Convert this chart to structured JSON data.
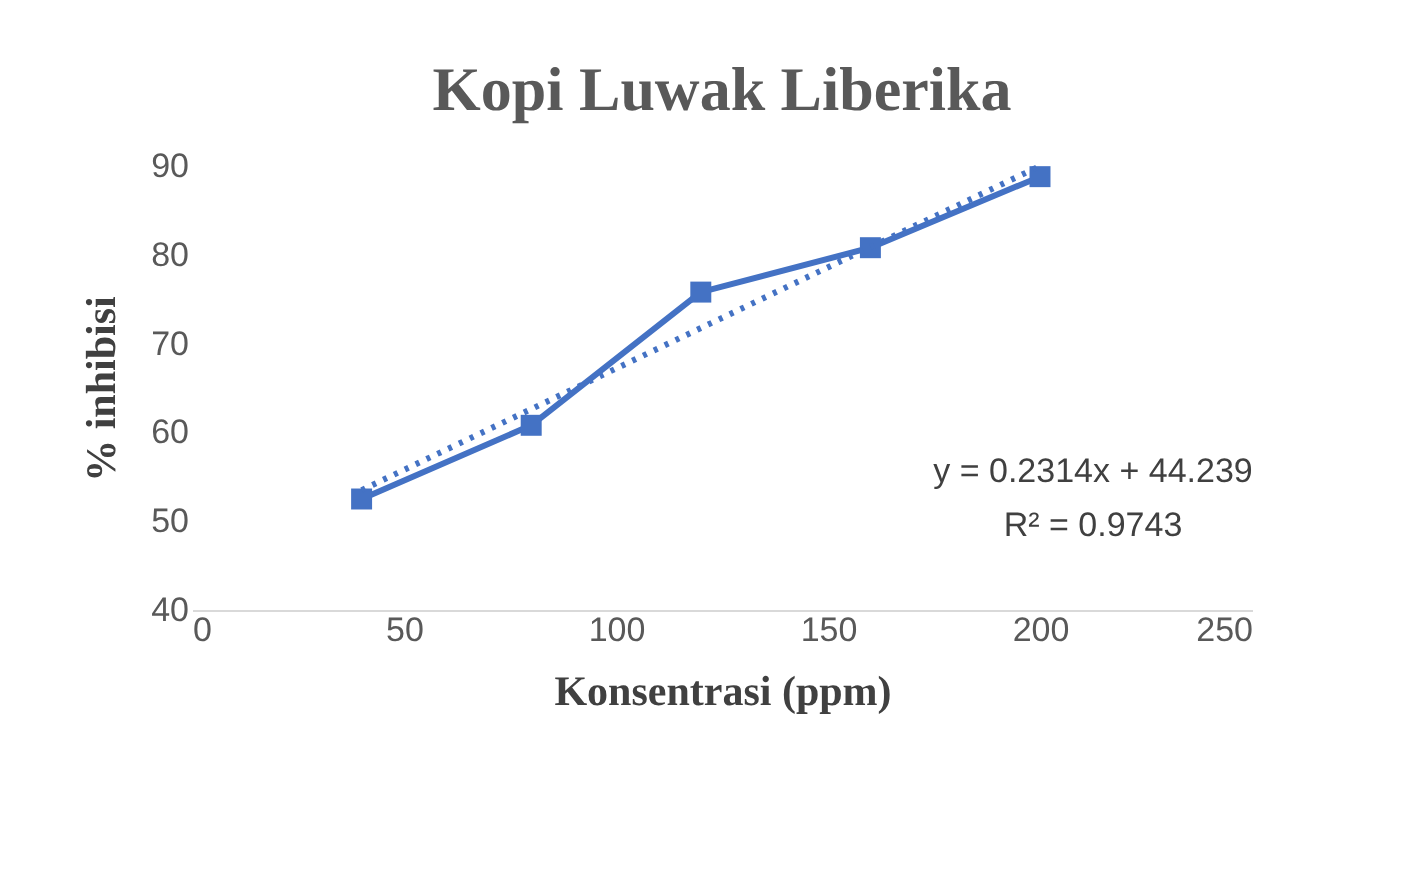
{
  "chart_data": {
    "type": "line",
    "title": "Kopi Luwak Liberika",
    "xlabel": "Konsentrasi (ppm)",
    "ylabel": "% inhibisi",
    "xlim": [
      0,
      250
    ],
    "xticks": [
      0,
      50,
      100,
      150,
      200,
      250
    ],
    "ylim": [
      40,
      90
    ],
    "yticks": [
      40,
      50,
      60,
      70,
      80,
      90
    ],
    "grid": false,
    "marker": "square",
    "series": [
      {
        "x": [
          40,
          80,
          120,
          160,
          200
        ],
        "values": [
          52.5,
          60.8,
          75.8,
          80.8,
          88.8
        ],
        "color": "#4472c4",
        "line_style": "solid"
      },
      {
        "type": "line",
        "x": [
          40,
          200
        ],
        "values": [
          53.5,
          90
        ],
        "color": "#4472c4",
        "line_style": "dotted",
        "marker": "none"
      }
    ],
    "annotations": [
      "y = 0.2314x + 44.239",
      "R² = 0.9743"
    ]
  }
}
